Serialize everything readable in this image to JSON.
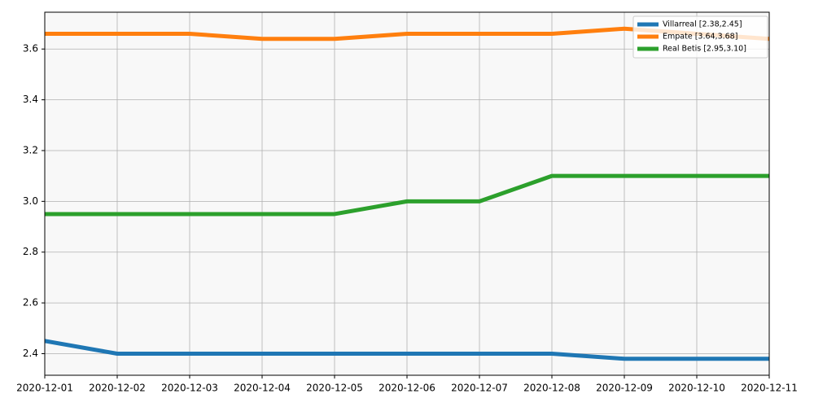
{
  "chart_data": {
    "type": "line",
    "x": [
      "2020-12-01",
      "2020-12-02",
      "2020-12-03",
      "2020-12-04",
      "2020-12-05",
      "2020-12-06",
      "2020-12-07",
      "2020-12-08",
      "2020-12-09",
      "2020-12-10",
      "2020-12-11"
    ],
    "series": [
      {
        "name": "Villarreal [2.38,2.45]",
        "color": "#1f77b4",
        "values": [
          2.45,
          2.4,
          2.4,
          2.4,
          2.4,
          2.4,
          2.4,
          2.4,
          2.38,
          2.38,
          2.38
        ]
      },
      {
        "name": "Empate [3.64,3.68]",
        "color": "#ff7f0e",
        "values": [
          3.66,
          3.66,
          3.66,
          3.64,
          3.64,
          3.66,
          3.66,
          3.66,
          3.68,
          3.66,
          3.64
        ]
      },
      {
        "name": "Real Betis [2.95,3.10]",
        "color": "#2ca02c",
        "values": [
          2.95,
          2.95,
          2.95,
          2.95,
          2.95,
          3.0,
          3.0,
          3.1,
          3.1,
          3.1,
          3.1
        ]
      }
    ],
    "xlim": [
      "2020-12-01",
      "2020-12-11"
    ],
    "xticks": [
      "2020-12-01",
      "2020-12-02",
      "2020-12-03",
      "2020-12-04",
      "2020-12-05",
      "2020-12-06",
      "2020-12-07",
      "2020-12-08",
      "2020-12-09",
      "2020-12-10",
      "2020-12-11"
    ],
    "ylim": [
      2.315,
      3.745
    ],
    "yticks": [
      2.4,
      2.6,
      2.8,
      {
        "value": 3,
        "label": "3.0"
      },
      3.2,
      3.4,
      3.6
    ],
    "grid": true,
    "legend": "upper right"
  }
}
